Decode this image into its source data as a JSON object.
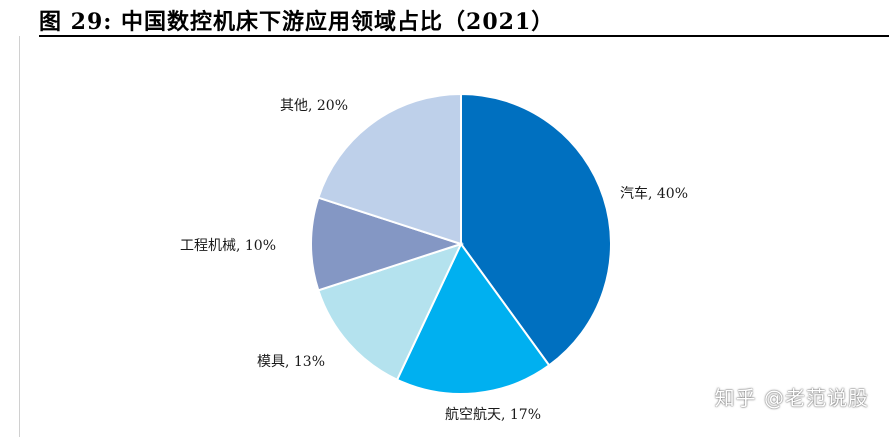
{
  "figure": {
    "title": "图 29:  中国数控机床下游应用领域占比（2021）"
  },
  "watermark": "知乎 @老范说股",
  "chart_data": {
    "type": "pie",
    "start": "12 o'clock, clockwise",
    "slices": [
      {
        "label": "汽车",
        "value": 40,
        "text": "汽车, 40%",
        "color": "#0070c0"
      },
      {
        "label": "航空航天",
        "value": 17,
        "text": "航空航天, 17%",
        "color": "#00b0f0"
      },
      {
        "label": "模具",
        "value": 13,
        "text": "模具, 13%",
        "color": "#b4e2ee"
      },
      {
        "label": "工程机械",
        "value": 10,
        "text": "工程机械, 10%",
        "color": "#8497c4"
      },
      {
        "label": "其他",
        "value": 20,
        "text": "其他, 20%",
        "color": "#bed0ea"
      }
    ]
  }
}
